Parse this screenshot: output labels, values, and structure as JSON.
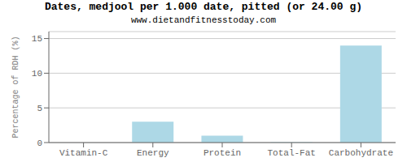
{
  "chart_data": {
    "type": "bar",
    "title": "Dates, medjool per 1.000 date, pitted (or 24.00 g)",
    "subtitle": "www.dietandfitnesstoday.com",
    "categories": [
      "Vitamin-C",
      "Energy",
      "Protein",
      "Total-Fat",
      "Carbohydrate"
    ],
    "values": [
      0,
      3.0,
      1.0,
      0.05,
      14.0
    ],
    "color": "#add8e6",
    "ylabel": "Percentage of RDH (%)",
    "ylim": [
      0,
      16
    ],
    "yticks": [
      0,
      5,
      10,
      15
    ],
    "grid": true
  }
}
